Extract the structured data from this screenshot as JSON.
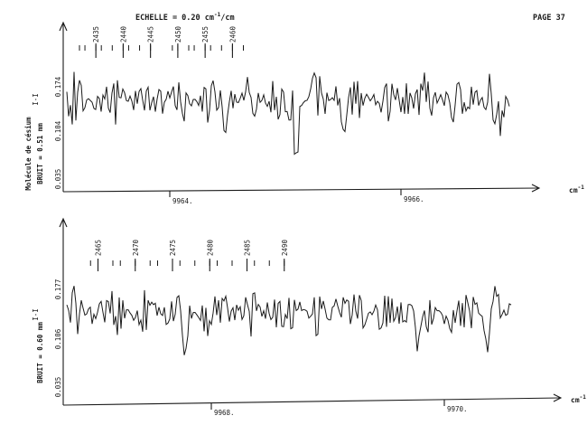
{
  "header": {
    "scale": "ECHELLE = 0.20 cm",
    "scale_sup": "-1",
    "scale_suffix": "/cm",
    "page_number": "PAGE 37"
  },
  "side_label": {
    "molecule": "Molécule de césium",
    "noise_prefix": "BRUIT ="
  },
  "chart_data": [
    {
      "type": "line",
      "panel": "top",
      "noise_value": "0.51 mm",
      "x_unit": "cm",
      "x_unit_sup": "-1",
      "x_ticks": [
        "9964.",
        "9966."
      ],
      "y_ticks": [
        "0.174",
        "0.104",
        "0.035"
      ],
      "y_marker": "I-I",
      "line_numbers": [
        "2435",
        "2440",
        "2445",
        "2450",
        "2455",
        "2460"
      ],
      "line_markers": [
        [
          2432,
          2433,
          2435,
          2436,
          2438,
          2440,
          2441,
          2443,
          2445
        ],
        [
          2449,
          2450,
          2452,
          2453,
          2455,
          2456,
          2458,
          2460,
          2462
        ]
      ],
      "grid": false
    },
    {
      "type": "line",
      "panel": "bottom",
      "noise_value": "0.60 mm",
      "x_unit": "cm",
      "x_unit_sup": "-1",
      "x_ticks": [
        "9968.",
        "9970."
      ],
      "y_ticks": [
        "0.177",
        "0.106",
        "0.035"
      ],
      "y_marker": "I-I",
      "line_numbers": [
        "2465",
        "2470",
        "2475",
        "2480",
        "2485",
        "2490"
      ],
      "line_markers": [
        [
          2464,
          2465,
          2467,
          2468,
          2470,
          2472,
          2473,
          2475
        ],
        [
          2476,
          2478,
          2480,
          2481,
          2483,
          2485,
          2486,
          2488,
          2490
        ]
      ],
      "grid": false
    }
  ]
}
